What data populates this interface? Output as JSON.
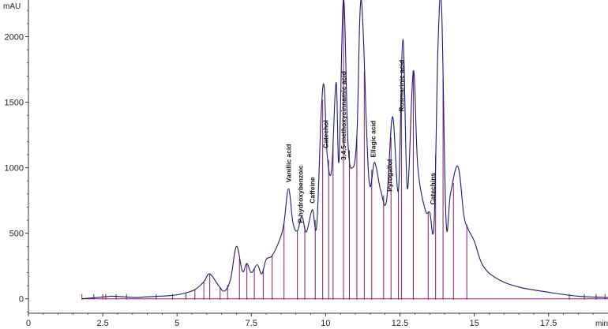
{
  "chart_data": {
    "type": "line",
    "title": "",
    "xlabel": "min",
    "ylabel": "mAU",
    "xlim": [
      0,
      19.5
    ],
    "ylim": [
      -110,
      2280
    ],
    "x_ticks": [
      0,
      2.5,
      5,
      7.5,
      10,
      12.5,
      15,
      17.5
    ],
    "y_ticks": [
      0,
      500,
      1000,
      1500,
      2000
    ],
    "x_tick_labels": [
      "0",
      "2.5",
      "5",
      "7.5",
      "10",
      "12.5",
      "15",
      "17.5"
    ],
    "y_tick_labels": [
      "0",
      "500",
      "1000",
      "1500",
      "2000"
    ],
    "grid": false,
    "colors": {
      "trace": "#1a1a7a",
      "integration": "#8b1a6b",
      "baseline": "#8b1a6b",
      "axes": "#333333"
    },
    "series": [
      {
        "x": [
          1.8,
          2.3,
          2.8,
          3.2,
          3.6,
          4.0,
          4.4,
          4.8,
          5.2,
          5.6,
          5.9,
          6.1,
          6.4,
          6.6,
          6.8,
          7.0,
          7.2,
          7.35,
          7.5,
          7.7,
          7.85,
          8.0,
          8.2,
          8.45,
          8.6,
          8.75,
          8.9,
          9.05,
          9.2,
          9.35,
          9.55,
          9.7,
          9.85,
          9.95,
          10.05,
          10.2,
          10.35,
          10.45,
          10.6,
          10.75,
          10.9,
          11.05,
          11.2,
          11.45,
          11.65,
          11.85,
          12.05,
          12.25,
          12.45,
          12.6,
          12.75,
          12.95,
          13.1,
          13.35,
          13.5,
          13.65,
          13.78,
          13.9,
          14.05,
          14.2,
          14.45,
          14.65,
          14.8,
          15.0,
          15.3,
          15.8,
          16.5,
          17.5,
          18.5,
          19.5
        ],
        "y": [
          0,
          10,
          20,
          15,
          10,
          15,
          20,
          25,
          40,
          70,
          130,
          190,
          100,
          60,
          150,
          400,
          210,
          270,
          200,
          260,
          190,
          300,
          330,
          450,
          580,
          840,
          580,
          520,
          630,
          510,
          680,
          560,
          1420,
          1620,
          1100,
          980,
          1650,
          1050,
          2290,
          1200,
          1000,
          1240,
          2280,
          930,
          1040,
          830,
          750,
          1390,
          830,
          1980,
          840,
          1740,
          1010,
          680,
          660,
          580,
          1930,
          2230,
          600,
          800,
          1010,
          640,
          530,
          440,
          250,
          150,
          90,
          50,
          20,
          10
        ]
      }
    ],
    "integration_marks": [
      1.8,
      2.2,
      2.5,
      2.6,
      2.95,
      3.3,
      4.3,
      4.85,
      5.3,
      5.6,
      5.9,
      6.1,
      6.45,
      6.7,
      7.1,
      7.35,
      7.6,
      7.9,
      8.2,
      8.6,
      9.05,
      9.3,
      9.65,
      9.9,
      10.1,
      10.25,
      10.6,
      10.8,
      11.05,
      11.3,
      11.55,
      11.95,
      12.2,
      12.45,
      12.55,
      12.95,
      13.45,
      13.7,
      13.95,
      14.3,
      14.75,
      18.2,
      18.7,
      19.1,
      19.4
    ]
  },
  "peak_labels": [
    {
      "text": "Vanillic acid",
      "x": 8.75,
      "y": 870
    },
    {
      "text": "P-hydroxybenzoic",
      "x": 9.15,
      "y": 560
    },
    {
      "text": "Caffeine",
      "x": 9.55,
      "y": 710
    },
    {
      "text": "Catechol",
      "x": 10.0,
      "y": 1130
    },
    {
      "text": "3,4,5-methoxycinnamic acid",
      "x": 10.6,
      "y": 1040
    },
    {
      "text": "Ellagic acid",
      "x": 11.6,
      "y": 1060
    },
    {
      "text": "Pyrogallol",
      "x": 12.15,
      "y": 800
    },
    {
      "text": "Rosmarinic acid",
      "x": 12.55,
      "y": 1410
    },
    {
      "text": "Catechins",
      "x": 13.6,
      "y": 700
    }
  ]
}
